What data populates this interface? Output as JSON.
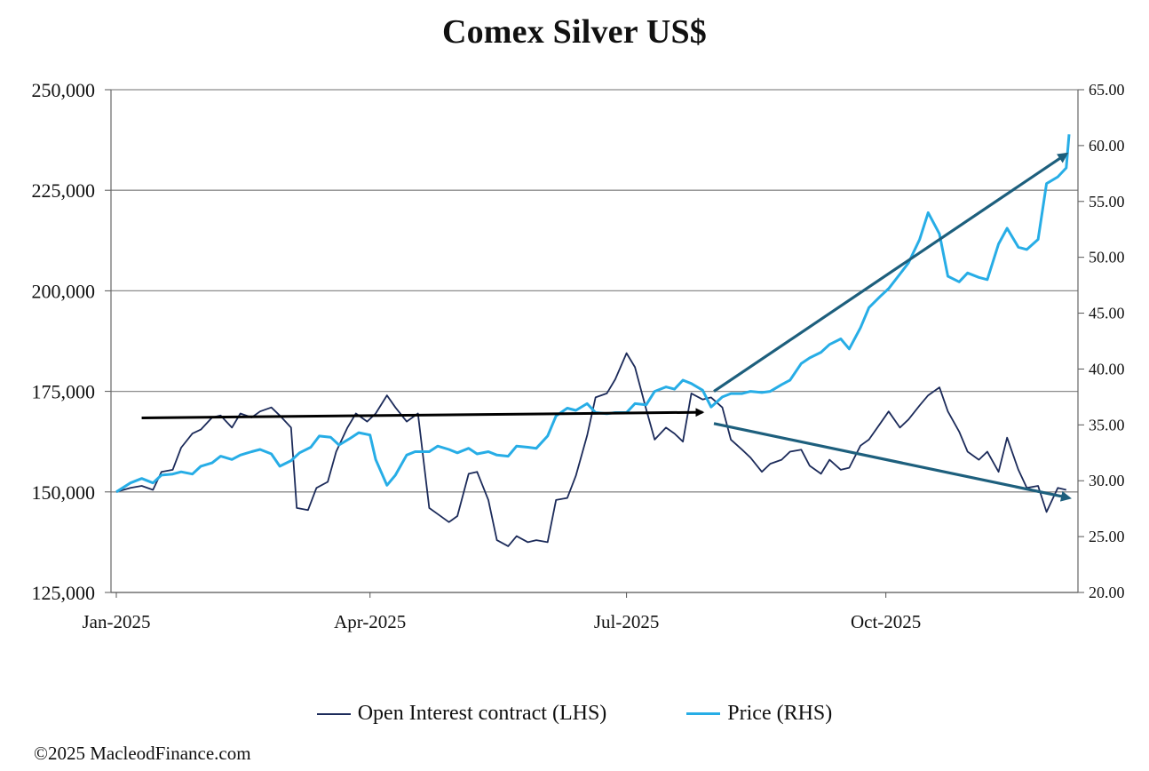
{
  "chart_data": {
    "type": "line",
    "title": "Comex Silver US$",
    "x_ticks": [
      "Jan-2025",
      "Apr-2025",
      "Jul-2025",
      "Oct-2025"
    ],
    "x_range": [
      "2025-01-01",
      "2025-12-05"
    ],
    "y_left": {
      "ticks": [
        "125,000",
        "150,000",
        "175,000",
        "200,000",
        "225,000",
        "250,000"
      ],
      "range": [
        125000,
        250000
      ]
    },
    "y_right": {
      "ticks": [
        "20.00",
        "25.00",
        "30.00",
        "35.00",
        "40.00",
        "45.00",
        "50.00",
        "55.00",
        "60.00",
        "65.00"
      ],
      "range": [
        20,
        65
      ]
    },
    "grid": "horizontal",
    "legend_position": "bottom",
    "series": [
      {
        "name": "Open Interest contract (LHS)",
        "axis": "left",
        "color": "#1c2b5a",
        "points": [
          [
            "2025-01-01",
            150000
          ],
          [
            "2025-01-06",
            151000
          ],
          [
            "2025-01-10",
            151500
          ],
          [
            "2025-01-14",
            150500
          ],
          [
            "2025-01-17",
            155000
          ],
          [
            "2025-01-21",
            155500
          ],
          [
            "2025-01-24",
            161000
          ],
          [
            "2025-01-28",
            164500
          ],
          [
            "2025-01-31",
            165500
          ],
          [
            "2025-02-04",
            168500
          ],
          [
            "2025-02-07",
            169000
          ],
          [
            "2025-02-11",
            166000
          ],
          [
            "2025-02-14",
            169500
          ],
          [
            "2025-02-18",
            168500
          ],
          [
            "2025-02-21",
            170000
          ],
          [
            "2025-02-25",
            171000
          ],
          [
            "2025-02-28",
            169000
          ],
          [
            "2025-03-04",
            166000
          ],
          [
            "2025-03-06",
            146000
          ],
          [
            "2025-03-10",
            145500
          ],
          [
            "2025-03-13",
            151000
          ],
          [
            "2025-03-17",
            152500
          ],
          [
            "2025-03-20",
            160000
          ],
          [
            "2025-03-24",
            166000
          ],
          [
            "2025-03-27",
            169500
          ],
          [
            "2025-03-31",
            167500
          ],
          [
            "2025-04-03",
            169500
          ],
          [
            "2025-04-07",
            174000
          ],
          [
            "2025-04-10",
            171000
          ],
          [
            "2025-04-14",
            167500
          ],
          [
            "2025-04-18",
            169500
          ],
          [
            "2025-04-22",
            146000
          ],
          [
            "2025-04-25",
            144500
          ],
          [
            "2025-04-29",
            142500
          ],
          [
            "2025-05-02",
            144000
          ],
          [
            "2025-05-06",
            154500
          ],
          [
            "2025-05-09",
            155000
          ],
          [
            "2025-05-13",
            148000
          ],
          [
            "2025-05-16",
            138000
          ],
          [
            "2025-05-20",
            136500
          ],
          [
            "2025-05-23",
            139000
          ],
          [
            "2025-05-27",
            137500
          ],
          [
            "2025-05-30",
            138000
          ],
          [
            "2025-06-03",
            137500
          ],
          [
            "2025-06-06",
            148000
          ],
          [
            "2025-06-10",
            148500
          ],
          [
            "2025-06-13",
            154000
          ],
          [
            "2025-06-17",
            164000
          ],
          [
            "2025-06-20",
            173500
          ],
          [
            "2025-06-24",
            174500
          ],
          [
            "2025-06-27",
            178000
          ],
          [
            "2025-07-01",
            184500
          ],
          [
            "2025-07-04",
            181000
          ],
          [
            "2025-07-08",
            170500
          ],
          [
            "2025-07-11",
            163000
          ],
          [
            "2025-07-15",
            166000
          ],
          [
            "2025-07-18",
            164500
          ],
          [
            "2025-07-21",
            162500
          ],
          [
            "2025-07-24",
            174500
          ],
          [
            "2025-07-28",
            173000
          ],
          [
            "2025-07-31",
            173500
          ],
          [
            "2025-08-04",
            171000
          ],
          [
            "2025-08-07",
            163000
          ],
          [
            "2025-08-11",
            160500
          ],
          [
            "2025-08-14",
            158500
          ],
          [
            "2025-08-18",
            155000
          ],
          [
            "2025-08-21",
            157000
          ],
          [
            "2025-08-25",
            158000
          ],
          [
            "2025-08-28",
            160000
          ],
          [
            "2025-09-01",
            160500
          ],
          [
            "2025-09-04",
            156500
          ],
          [
            "2025-09-08",
            154500
          ],
          [
            "2025-09-11",
            158000
          ],
          [
            "2025-09-15",
            155500
          ],
          [
            "2025-09-18",
            156000
          ],
          [
            "2025-09-22",
            161500
          ],
          [
            "2025-09-25",
            163000
          ],
          [
            "2025-09-29",
            167000
          ],
          [
            "2025-10-02",
            170000
          ],
          [
            "2025-10-06",
            166000
          ],
          [
            "2025-10-09",
            168000
          ],
          [
            "2025-10-13",
            171500
          ],
          [
            "2025-10-16",
            174000
          ],
          [
            "2025-10-20",
            176000
          ],
          [
            "2025-10-23",
            170000
          ],
          [
            "2025-10-27",
            165000
          ],
          [
            "2025-10-30",
            160000
          ],
          [
            "2025-11-03",
            158000
          ],
          [
            "2025-11-06",
            160000
          ],
          [
            "2025-11-10",
            155000
          ],
          [
            "2025-11-13",
            163500
          ],
          [
            "2025-11-17",
            155500
          ],
          [
            "2025-11-20",
            151000
          ],
          [
            "2025-11-24",
            151500
          ],
          [
            "2025-11-27",
            145000
          ],
          [
            "2025-12-01",
            151000
          ],
          [
            "2025-12-04",
            150500
          ]
        ]
      },
      {
        "name": "Price (RHS)",
        "axis": "right",
        "color": "#27ade6",
        "points": [
          [
            "2025-01-01",
            29.0
          ],
          [
            "2025-01-06",
            29.8
          ],
          [
            "2025-01-10",
            30.2
          ],
          [
            "2025-01-14",
            29.8
          ],
          [
            "2025-01-17",
            30.5
          ],
          [
            "2025-01-21",
            30.6
          ],
          [
            "2025-01-24",
            30.8
          ],
          [
            "2025-01-28",
            30.6
          ],
          [
            "2025-01-31",
            31.3
          ],
          [
            "2025-02-04",
            31.6
          ],
          [
            "2025-02-07",
            32.2
          ],
          [
            "2025-02-11",
            31.9
          ],
          [
            "2025-02-14",
            32.3
          ],
          [
            "2025-02-18",
            32.6
          ],
          [
            "2025-02-21",
            32.8
          ],
          [
            "2025-02-25",
            32.4
          ],
          [
            "2025-02-28",
            31.3
          ],
          [
            "2025-03-04",
            31.8
          ],
          [
            "2025-03-07",
            32.5
          ],
          [
            "2025-03-11",
            33.0
          ],
          [
            "2025-03-14",
            34.0
          ],
          [
            "2025-03-18",
            33.9
          ],
          [
            "2025-03-21",
            33.2
          ],
          [
            "2025-03-25",
            33.8
          ],
          [
            "2025-03-28",
            34.3
          ],
          [
            "2025-04-01",
            34.1
          ],
          [
            "2025-04-03",
            31.9
          ],
          [
            "2025-04-07",
            29.6
          ],
          [
            "2025-04-10",
            30.5
          ],
          [
            "2025-04-14",
            32.3
          ],
          [
            "2025-04-17",
            32.6
          ],
          [
            "2025-04-22",
            32.6
          ],
          [
            "2025-04-25",
            33.1
          ],
          [
            "2025-04-29",
            32.8
          ],
          [
            "2025-05-02",
            32.5
          ],
          [
            "2025-05-06",
            32.9
          ],
          [
            "2025-05-09",
            32.4
          ],
          [
            "2025-05-13",
            32.6
          ],
          [
            "2025-05-16",
            32.3
          ],
          [
            "2025-05-20",
            32.2
          ],
          [
            "2025-05-23",
            33.1
          ],
          [
            "2025-05-27",
            33.0
          ],
          [
            "2025-05-30",
            32.9
          ],
          [
            "2025-06-03",
            34.0
          ],
          [
            "2025-06-06",
            35.8
          ],
          [
            "2025-06-10",
            36.5
          ],
          [
            "2025-06-13",
            36.3
          ],
          [
            "2025-06-17",
            36.9
          ],
          [
            "2025-06-20",
            36.1
          ],
          [
            "2025-06-24",
            36.0
          ],
          [
            "2025-06-27",
            36.1
          ],
          [
            "2025-07-01",
            36.1
          ],
          [
            "2025-07-04",
            36.9
          ],
          [
            "2025-07-08",
            36.8
          ],
          [
            "2025-07-11",
            38.0
          ],
          [
            "2025-07-15",
            38.4
          ],
          [
            "2025-07-18",
            38.2
          ],
          [
            "2025-07-21",
            39.0
          ],
          [
            "2025-07-24",
            38.7
          ],
          [
            "2025-07-28",
            38.1
          ],
          [
            "2025-07-31",
            36.6
          ],
          [
            "2025-08-04",
            37.5
          ],
          [
            "2025-08-07",
            37.8
          ],
          [
            "2025-08-11",
            37.8
          ],
          [
            "2025-08-14",
            38.0
          ],
          [
            "2025-08-18",
            37.9
          ],
          [
            "2025-08-21",
            38.0
          ],
          [
            "2025-08-25",
            38.6
          ],
          [
            "2025-08-28",
            39.0
          ],
          [
            "2025-09-01",
            40.5
          ],
          [
            "2025-09-04",
            41.0
          ],
          [
            "2025-09-08",
            41.5
          ],
          [
            "2025-09-11",
            42.2
          ],
          [
            "2025-09-15",
            42.7
          ],
          [
            "2025-09-18",
            41.8
          ],
          [
            "2025-09-22",
            43.7
          ],
          [
            "2025-09-25",
            45.5
          ],
          [
            "2025-09-29",
            46.5
          ],
          [
            "2025-10-02",
            47.2
          ],
          [
            "2025-10-06",
            48.5
          ],
          [
            "2025-10-09",
            49.5
          ],
          [
            "2025-10-13",
            51.6
          ],
          [
            "2025-10-16",
            54.0
          ],
          [
            "2025-10-20",
            52.1
          ],
          [
            "2025-10-23",
            48.3
          ],
          [
            "2025-10-27",
            47.8
          ],
          [
            "2025-10-30",
            48.6
          ],
          [
            "2025-11-03",
            48.2
          ],
          [
            "2025-11-06",
            48.0
          ],
          [
            "2025-11-10",
            51.2
          ],
          [
            "2025-11-13",
            52.6
          ],
          [
            "2025-11-17",
            50.9
          ],
          [
            "2025-11-20",
            50.7
          ],
          [
            "2025-11-24",
            51.6
          ],
          [
            "2025-11-27",
            56.6
          ],
          [
            "2025-12-01",
            57.2
          ],
          [
            "2025-12-04",
            58.0
          ],
          [
            "2025-12-05",
            61.0
          ]
        ]
      }
    ],
    "annotations": [
      {
        "type": "arrow",
        "color": "#000000",
        "from": [
          "2025-01-10",
          168400
        ],
        "to": [
          "2025-07-28",
          169800
        ]
      },
      {
        "type": "arrow",
        "color": "#1d5f7d",
        "from": [
          "2025-08-01",
          175000
        ],
        "to": [
          "2025-12-04",
          234000
        ]
      },
      {
        "type": "arrow",
        "color": "#1d5f7d",
        "from": [
          "2025-08-01",
          167000
        ],
        "to": [
          "2025-12-05",
          148500
        ]
      }
    ]
  },
  "legend": [
    {
      "label": "Open Interest contract (LHS)",
      "color": "#1c2b5a"
    },
    {
      "label": "Price (RHS)",
      "color": "#27ade6"
    }
  ],
  "copyright": "©2025 MacleodFinance.com"
}
